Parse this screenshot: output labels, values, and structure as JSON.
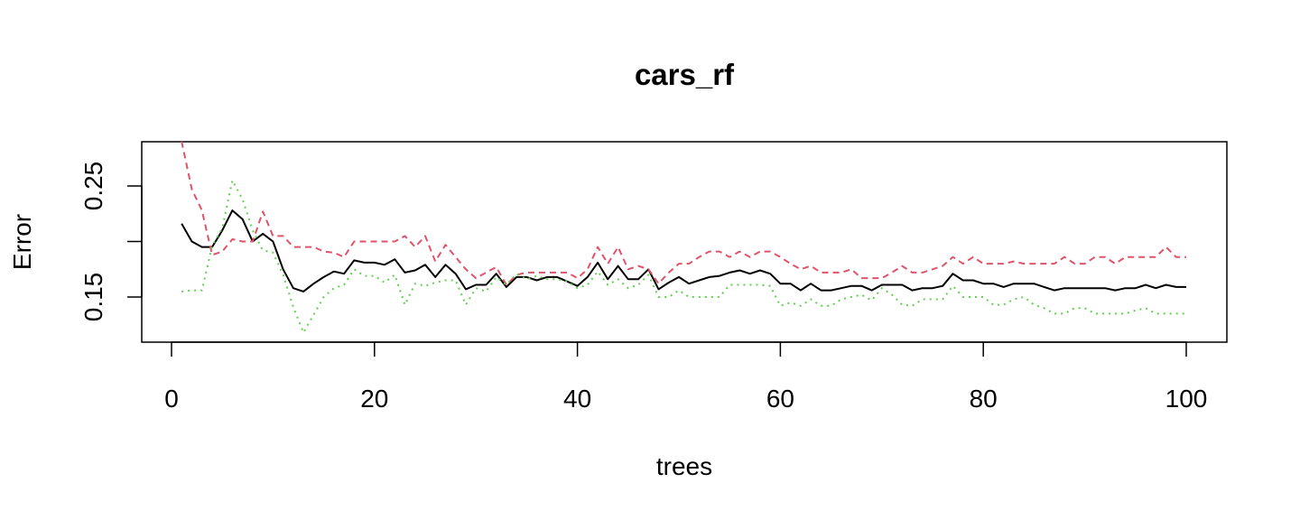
{
  "chart_data": {
    "type": "line",
    "title": "cars_rf",
    "xlabel": "trees",
    "ylabel": "Error",
    "xlim": [
      0,
      100
    ],
    "ylim": [
      0.11,
      0.29
    ],
    "x_ticks": [
      0,
      20,
      40,
      60,
      80,
      100
    ],
    "x_tick_labels": [
      "0",
      "20",
      "40",
      "60",
      "80",
      "100"
    ],
    "y_ticks": [
      0.15,
      0.2,
      0.25
    ],
    "y_tick_labels": [
      "0.15",
      "",
      "0.25"
    ],
    "grid": false,
    "legend": "none",
    "x": [
      1,
      2,
      3,
      4,
      5,
      6,
      7,
      8,
      9,
      10,
      11,
      12,
      13,
      14,
      15,
      16,
      17,
      18,
      19,
      20,
      21,
      22,
      23,
      24,
      25,
      26,
      27,
      28,
      29,
      30,
      31,
      32,
      33,
      34,
      35,
      36,
      37,
      38,
      39,
      40,
      41,
      42,
      43,
      44,
      45,
      46,
      47,
      48,
      49,
      50,
      51,
      52,
      53,
      54,
      55,
      56,
      57,
      58,
      59,
      60,
      61,
      62,
      63,
      64,
      65,
      66,
      67,
      68,
      69,
      70,
      71,
      72,
      73,
      74,
      75,
      76,
      77,
      78,
      79,
      80,
      81,
      82,
      83,
      84,
      85,
      86,
      87,
      88,
      89,
      90,
      91,
      92,
      93,
      94,
      95,
      96,
      97,
      98,
      99,
      100
    ],
    "series": [
      {
        "color": "#000000",
        "dash": "solid",
        "values": [
          0.216,
          0.2,
          0.195,
          0.195,
          0.21,
          0.228,
          0.22,
          0.2,
          0.207,
          0.2,
          0.175,
          0.158,
          0.155,
          0.162,
          0.168,
          0.173,
          0.171,
          0.183,
          0.181,
          0.181,
          0.179,
          0.184,
          0.172,
          0.174,
          0.179,
          0.168,
          0.179,
          0.171,
          0.157,
          0.161,
          0.161,
          0.171,
          0.159,
          0.168,
          0.168,
          0.165,
          0.168,
          0.168,
          0.164,
          0.16,
          0.168,
          0.181,
          0.166,
          0.178,
          0.166,
          0.166,
          0.175,
          0.157,
          0.163,
          0.168,
          0.162,
          0.165,
          0.168,
          0.169,
          0.172,
          0.174,
          0.171,
          0.174,
          0.171,
          0.162,
          0.162,
          0.156,
          0.162,
          0.156,
          0.156,
          0.158,
          0.16,
          0.16,
          0.156,
          0.161,
          0.161,
          0.161,
          0.156,
          0.158,
          0.158,
          0.16,
          0.171,
          0.165,
          0.165,
          0.162,
          0.162,
          0.159,
          0.162,
          0.162,
          0.162,
          0.159,
          0.156,
          0.158,
          0.158,
          0.158,
          0.158,
          0.158,
          0.156,
          0.158,
          0.158,
          0.161,
          0.158,
          0.161,
          0.159,
          0.159
        ]
      },
      {
        "color": "#DF536B",
        "dash": "dashed",
        "values": [
          0.29,
          0.247,
          0.228,
          0.188,
          0.191,
          0.202,
          0.2,
          0.2,
          0.227,
          0.205,
          0.205,
          0.195,
          0.195,
          0.195,
          0.191,
          0.19,
          0.186,
          0.2,
          0.2,
          0.2,
          0.2,
          0.2,
          0.205,
          0.195,
          0.205,
          0.182,
          0.197,
          0.186,
          0.175,
          0.167,
          0.172,
          0.177,
          0.161,
          0.17,
          0.172,
          0.172,
          0.172,
          0.172,
          0.172,
          0.167,
          0.175,
          0.195,
          0.18,
          0.195,
          0.175,
          0.178,
          0.175,
          0.162,
          0.172,
          0.18,
          0.18,
          0.186,
          0.191,
          0.191,
          0.186,
          0.191,
          0.186,
          0.191,
          0.191,
          0.186,
          0.18,
          0.175,
          0.178,
          0.172,
          0.172,
          0.172,
          0.175,
          0.167,
          0.167,
          0.167,
          0.172,
          0.178,
          0.172,
          0.172,
          0.175,
          0.178,
          0.186,
          0.18,
          0.186,
          0.18,
          0.18,
          0.18,
          0.182,
          0.18,
          0.18,
          0.18,
          0.18,
          0.186,
          0.18,
          0.18,
          0.186,
          0.186,
          0.18,
          0.186,
          0.186,
          0.186,
          0.186,
          0.195,
          0.186,
          0.186
        ]
      },
      {
        "color": "#61D04F",
        "dash": "dotted",
        "values": [
          0.155,
          0.156,
          0.156,
          0.196,
          0.212,
          0.255,
          0.238,
          0.21,
          0.192,
          0.19,
          0.17,
          0.141,
          0.118,
          0.134,
          0.15,
          0.158,
          0.161,
          0.175,
          0.169,
          0.169,
          0.163,
          0.17,
          0.143,
          0.162,
          0.16,
          0.163,
          0.165,
          0.165,
          0.143,
          0.158,
          0.155,
          0.168,
          0.161,
          0.171,
          0.166,
          0.169,
          0.166,
          0.166,
          0.164,
          0.158,
          0.161,
          0.173,
          0.161,
          0.166,
          0.158,
          0.161,
          0.17,
          0.15,
          0.15,
          0.156,
          0.15,
          0.15,
          0.15,
          0.15,
          0.161,
          0.161,
          0.161,
          0.161,
          0.16,
          0.142,
          0.145,
          0.142,
          0.148,
          0.142,
          0.142,
          0.148,
          0.15,
          0.152,
          0.147,
          0.158,
          0.152,
          0.143,
          0.142,
          0.148,
          0.148,
          0.148,
          0.16,
          0.15,
          0.15,
          0.15,
          0.143,
          0.143,
          0.148,
          0.15,
          0.143,
          0.14,
          0.135,
          0.135,
          0.14,
          0.14,
          0.135,
          0.135,
          0.135,
          0.135,
          0.138,
          0.14,
          0.135,
          0.135,
          0.135,
          0.135
        ]
      }
    ]
  }
}
